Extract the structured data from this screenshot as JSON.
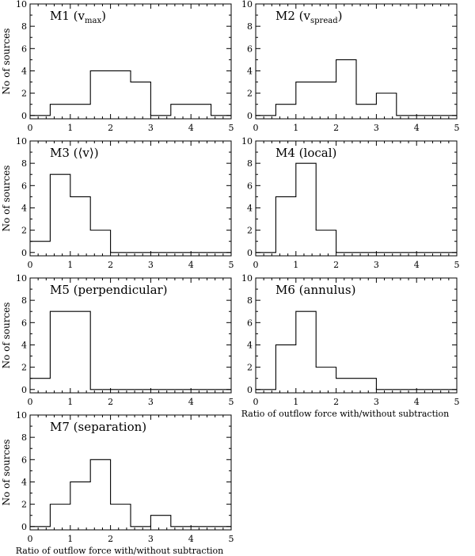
{
  "chart_data": [
    {
      "type": "histogram",
      "label_prefix": "M1 (v",
      "label_sub": "max",
      "label_suffix": ")",
      "bins": [
        0,
        0.5,
        1,
        1.5,
        2,
        2.5,
        3,
        3.5,
        4,
        4.5,
        5
      ],
      "counts": [
        0,
        1,
        1,
        4,
        4,
        3,
        0,
        1,
        1,
        0
      ],
      "ylabel": "No of sources",
      "xlabel": "",
      "xlim": [
        0,
        5
      ],
      "ylim": [
        -0.3,
        10
      ],
      "xticks": [
        "0",
        "1",
        "2",
        "3",
        "4",
        "5"
      ],
      "yticks": [
        "0",
        "2",
        "4",
        "6",
        "8",
        "10"
      ]
    },
    {
      "type": "histogram",
      "label_prefix": "M2 (v",
      "label_sub": "spread",
      "label_suffix": ")",
      "bins": [
        0,
        0.5,
        1,
        1.5,
        2,
        2.5,
        3,
        3.5,
        4,
        4.5,
        5
      ],
      "counts": [
        0,
        1,
        3,
        3,
        5,
        1,
        2,
        0,
        0,
        0
      ],
      "ylabel": "",
      "xlabel": "",
      "xlim": [
        0,
        5
      ],
      "ylim": [
        -0.3,
        10
      ],
      "xticks": [
        "0",
        "1",
        "2",
        "3",
        "4",
        "5"
      ],
      "yticks": [
        "0",
        "2",
        "4",
        "6",
        "8",
        "10"
      ]
    },
    {
      "type": "histogram",
      "label_prefix": "M3 (⟨v⟩)",
      "label_sub": "",
      "label_suffix": "",
      "bins": [
        0,
        0.5,
        1,
        1.5,
        2,
        2.5,
        3,
        3.5,
        4,
        4.5,
        5
      ],
      "counts": [
        1,
        7,
        5,
        2,
        0,
        0,
        0,
        0,
        0,
        0
      ],
      "ylabel": "No of sources",
      "xlabel": "",
      "xlim": [
        0,
        5
      ],
      "ylim": [
        -0.3,
        10
      ],
      "xticks": [
        "0",
        "1",
        "2",
        "3",
        "4",
        "5"
      ],
      "yticks": [
        "0",
        "2",
        "4",
        "6",
        "8",
        "10"
      ]
    },
    {
      "type": "histogram",
      "label_prefix": "M4 (local)",
      "label_sub": "",
      "label_suffix": "",
      "bins": [
        0,
        0.5,
        1,
        1.5,
        2,
        2.5,
        3,
        3.5,
        4,
        4.5,
        5
      ],
      "counts": [
        0,
        5,
        8,
        2,
        0,
        0,
        0,
        0,
        0,
        0
      ],
      "ylabel": "",
      "xlabel": "",
      "xlim": [
        0,
        5
      ],
      "ylim": [
        -0.3,
        10
      ],
      "xticks": [
        "0",
        "1",
        "2",
        "3",
        "4",
        "5"
      ],
      "yticks": [
        "0",
        "2",
        "4",
        "6",
        "8",
        "10"
      ]
    },
    {
      "type": "histogram",
      "label_prefix": "M5 (perpendicular)",
      "label_sub": "",
      "label_suffix": "",
      "bins": [
        0,
        0.5,
        1,
        1.5,
        2,
        2.5,
        3,
        3.5,
        4,
        4.5,
        5
      ],
      "counts": [
        1,
        7,
        7,
        0,
        0,
        0,
        0,
        0,
        0,
        0
      ],
      "ylabel": "No of sources",
      "xlabel": "",
      "xlim": [
        0,
        5
      ],
      "ylim": [
        -0.3,
        10
      ],
      "xticks": [
        "0",
        "1",
        "2",
        "3",
        "4",
        "5"
      ],
      "yticks": [
        "0",
        "2",
        "4",
        "6",
        "8",
        "10"
      ]
    },
    {
      "type": "histogram",
      "label_prefix": "M6 (annulus)",
      "label_sub": "",
      "label_suffix": "",
      "bins": [
        0,
        0.5,
        1,
        1.5,
        2,
        2.5,
        3,
        3.5,
        4,
        4.5,
        5
      ],
      "counts": [
        0,
        4,
        7,
        2,
        1,
        1,
        0,
        0,
        0,
        0
      ],
      "ylabel": "",
      "xlabel": "Ratio of outflow force with/without subtraction",
      "xlim": [
        0,
        5
      ],
      "ylim": [
        -0.3,
        10
      ],
      "xticks": [
        "0",
        "1",
        "2",
        "3",
        "4",
        "5"
      ],
      "yticks": [
        "0",
        "2",
        "4",
        "6",
        "8",
        "10"
      ]
    },
    {
      "type": "histogram",
      "label_prefix": "M7 (separation)",
      "label_sub": "",
      "label_suffix": "",
      "bins": [
        0,
        0.5,
        1,
        1.5,
        2,
        2.5,
        3,
        3.5,
        4,
        4.5,
        5
      ],
      "counts": [
        0,
        2,
        4,
        6,
        2,
        0,
        1,
        0,
        0,
        0
      ],
      "ylabel": "No of sources",
      "xlabel": "Ratio of outflow force with/without subtraction",
      "xlim": [
        0,
        5
      ],
      "ylim": [
        -0.3,
        10
      ],
      "xticks": [
        "0",
        "1",
        "2",
        "3",
        "4",
        "5"
      ],
      "yticks": [
        "0",
        "2",
        "4",
        "6",
        "8",
        "10"
      ]
    }
  ]
}
